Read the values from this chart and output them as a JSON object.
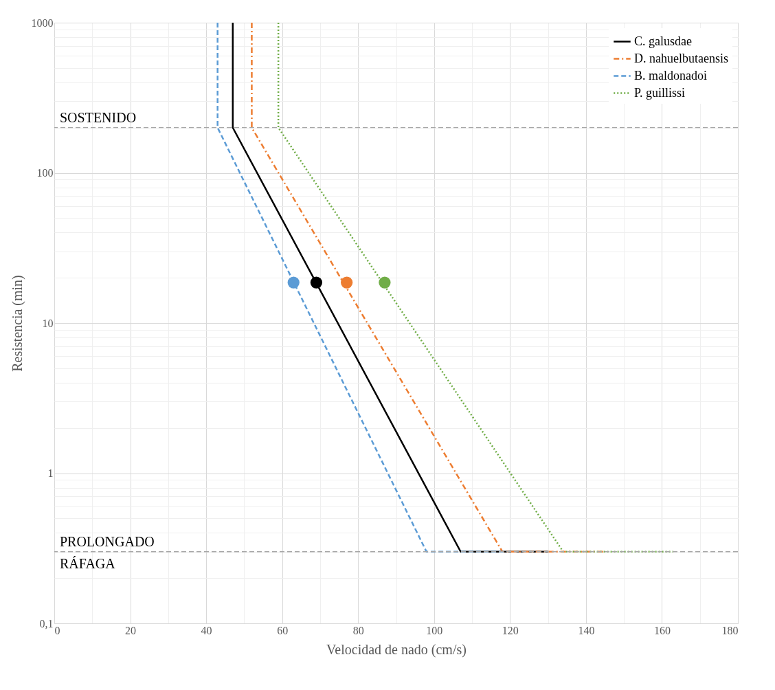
{
  "chart_data": {
    "type": "line",
    "xlabel": "Velocidad de nado (cm/s)",
    "ylabel": "Resistencia (min)",
    "log": "y",
    "xlim": [
      0,
      180
    ],
    "xticks": [
      0,
      20,
      40,
      60,
      80,
      100,
      120,
      140,
      160,
      180
    ],
    "ylim": [
      0.1,
      1000
    ],
    "yticks": [
      {
        "value": 0.1,
        "label": "0,1"
      },
      1,
      10,
      100,
      1000
    ],
    "grid": true,
    "legend": "top right",
    "series": [
      {
        "name": "C. galusdae",
        "color": "#000000",
        "line_style": "solid",
        "x": [
          47,
          47,
          107,
          130
        ],
        "values": [
          1000,
          200,
          0.3,
          0.3
        ]
      },
      {
        "name": "D. nahuelbutaensis",
        "color": "#ed7d31",
        "line_style": "dashdot",
        "x": [
          52,
          52,
          118,
          145
        ],
        "values": [
          1000,
          200,
          0.3,
          0.3
        ]
      },
      {
        "name": "B. maldonadoi",
        "color": "#5b9bd5",
        "line_style": "dashed",
        "x": [
          43,
          43,
          98,
          119
        ],
        "values": [
          1000,
          200,
          0.3,
          0.3
        ]
      },
      {
        "name": "P. guillissi",
        "color": "#70ad47",
        "line_style": "dotted",
        "x": [
          59,
          59,
          134,
          163
        ],
        "values": [
          1000,
          200,
          0.3,
          0.3
        ]
      },
      {
        "type": "scatter",
        "marker": "circle",
        "x": [
          63,
          69,
          77,
          87
        ],
        "values": [
          18.6,
          18.6,
          18.6,
          18.6
        ],
        "colors": [
          "#5b9bd5",
          "#000000",
          "#ed7d31",
          "#70ad47"
        ]
      }
    ],
    "ref_lines": [
      {
        "axis": "y",
        "value": 200,
        "label": "SOSTENIDO",
        "color": "#a6a6a6",
        "line_style": "dashed"
      },
      {
        "axis": "y",
        "value": 0.3,
        "label": "PROLONGADO",
        "color": "#a6a6a6",
        "line_style": "dashed"
      }
    ],
    "annotations": [
      {
        "text": "RÁFAGA",
        "x": 0,
        "y": 0.3
      }
    ]
  }
}
